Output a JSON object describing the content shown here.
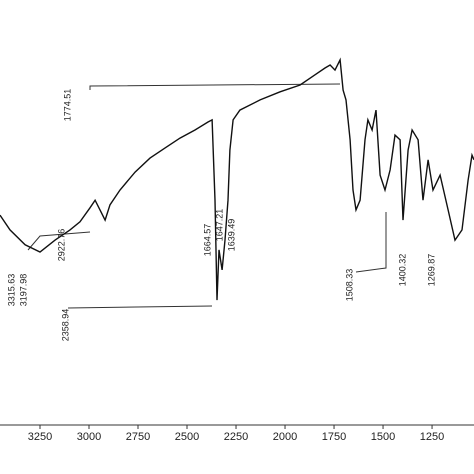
{
  "chart_data": {
    "type": "line",
    "x": [
      3454,
      3403,
      3326,
      3250,
      3173,
      3097,
      3046,
      2995,
      2969,
      2944,
      2918,
      2893,
      2842,
      2765,
      2689,
      2612,
      2536,
      2459,
      2393,
      2372,
      2357,
      2347,
      2337,
      2321,
      2306,
      2291,
      2281,
      2265,
      2230,
      2127,
      2025,
      1923,
      1847,
      1796,
      1770,
      1745,
      1719,
      1704,
      1689,
      1668,
      1653,
      1638,
      1617,
      1592,
      1577,
      1556,
      1536,
      1515,
      1490,
      1464,
      1439,
      1413,
      1398,
      1372,
      1352,
      1321,
      1296,
      1270,
      1245,
      1209,
      1168,
      1133,
      1097,
      1066,
      1046,
      1036
    ],
    "series": [
      {
        "color": "#111111",
        "values": [
          49.4,
          45.9,
          42.4,
          40.7,
          43.5,
          45.9,
          47.8,
          51.1,
          52.9,
          50.6,
          48.2,
          51.8,
          55.3,
          59.5,
          62.8,
          65.2,
          67.5,
          69.4,
          71.3,
          71.8,
          52.9,
          29.4,
          41.2,
          36.5,
          43.5,
          52.9,
          64.7,
          71.8,
          74.1,
          76.5,
          78.4,
          80.0,
          82.4,
          84.0,
          84.7,
          83.5,
          85.9,
          78.8,
          76.5,
          67.1,
          55.3,
          50.6,
          52.9,
          67.1,
          71.8,
          69.4,
          74.1,
          58.8,
          55.3,
          60.0,
          68.2,
          67.1,
          48.2,
          64.7,
          69.4,
          67.1,
          52.9,
          62.4,
          55.3,
          58.8,
          50.6,
          43.5,
          45.9,
          57.6,
          63.5,
          62.4
        ]
      }
    ],
    "xlim": [
      3454,
      1036
    ],
    "ylim": [
      0,
      100
    ],
    "xticks": [
      3250,
      3000,
      2750,
      2500,
      2250,
      2000,
      1750,
      1500,
      1250
    ],
    "annotations": [
      "3315.63",
      "3197.98",
      "2922.76",
      "2358.94",
      "1664.57",
      "1647.21",
      "1639.49",
      "1774.51",
      "1508.33",
      "1400.32",
      "1269.87"
    ]
  }
}
